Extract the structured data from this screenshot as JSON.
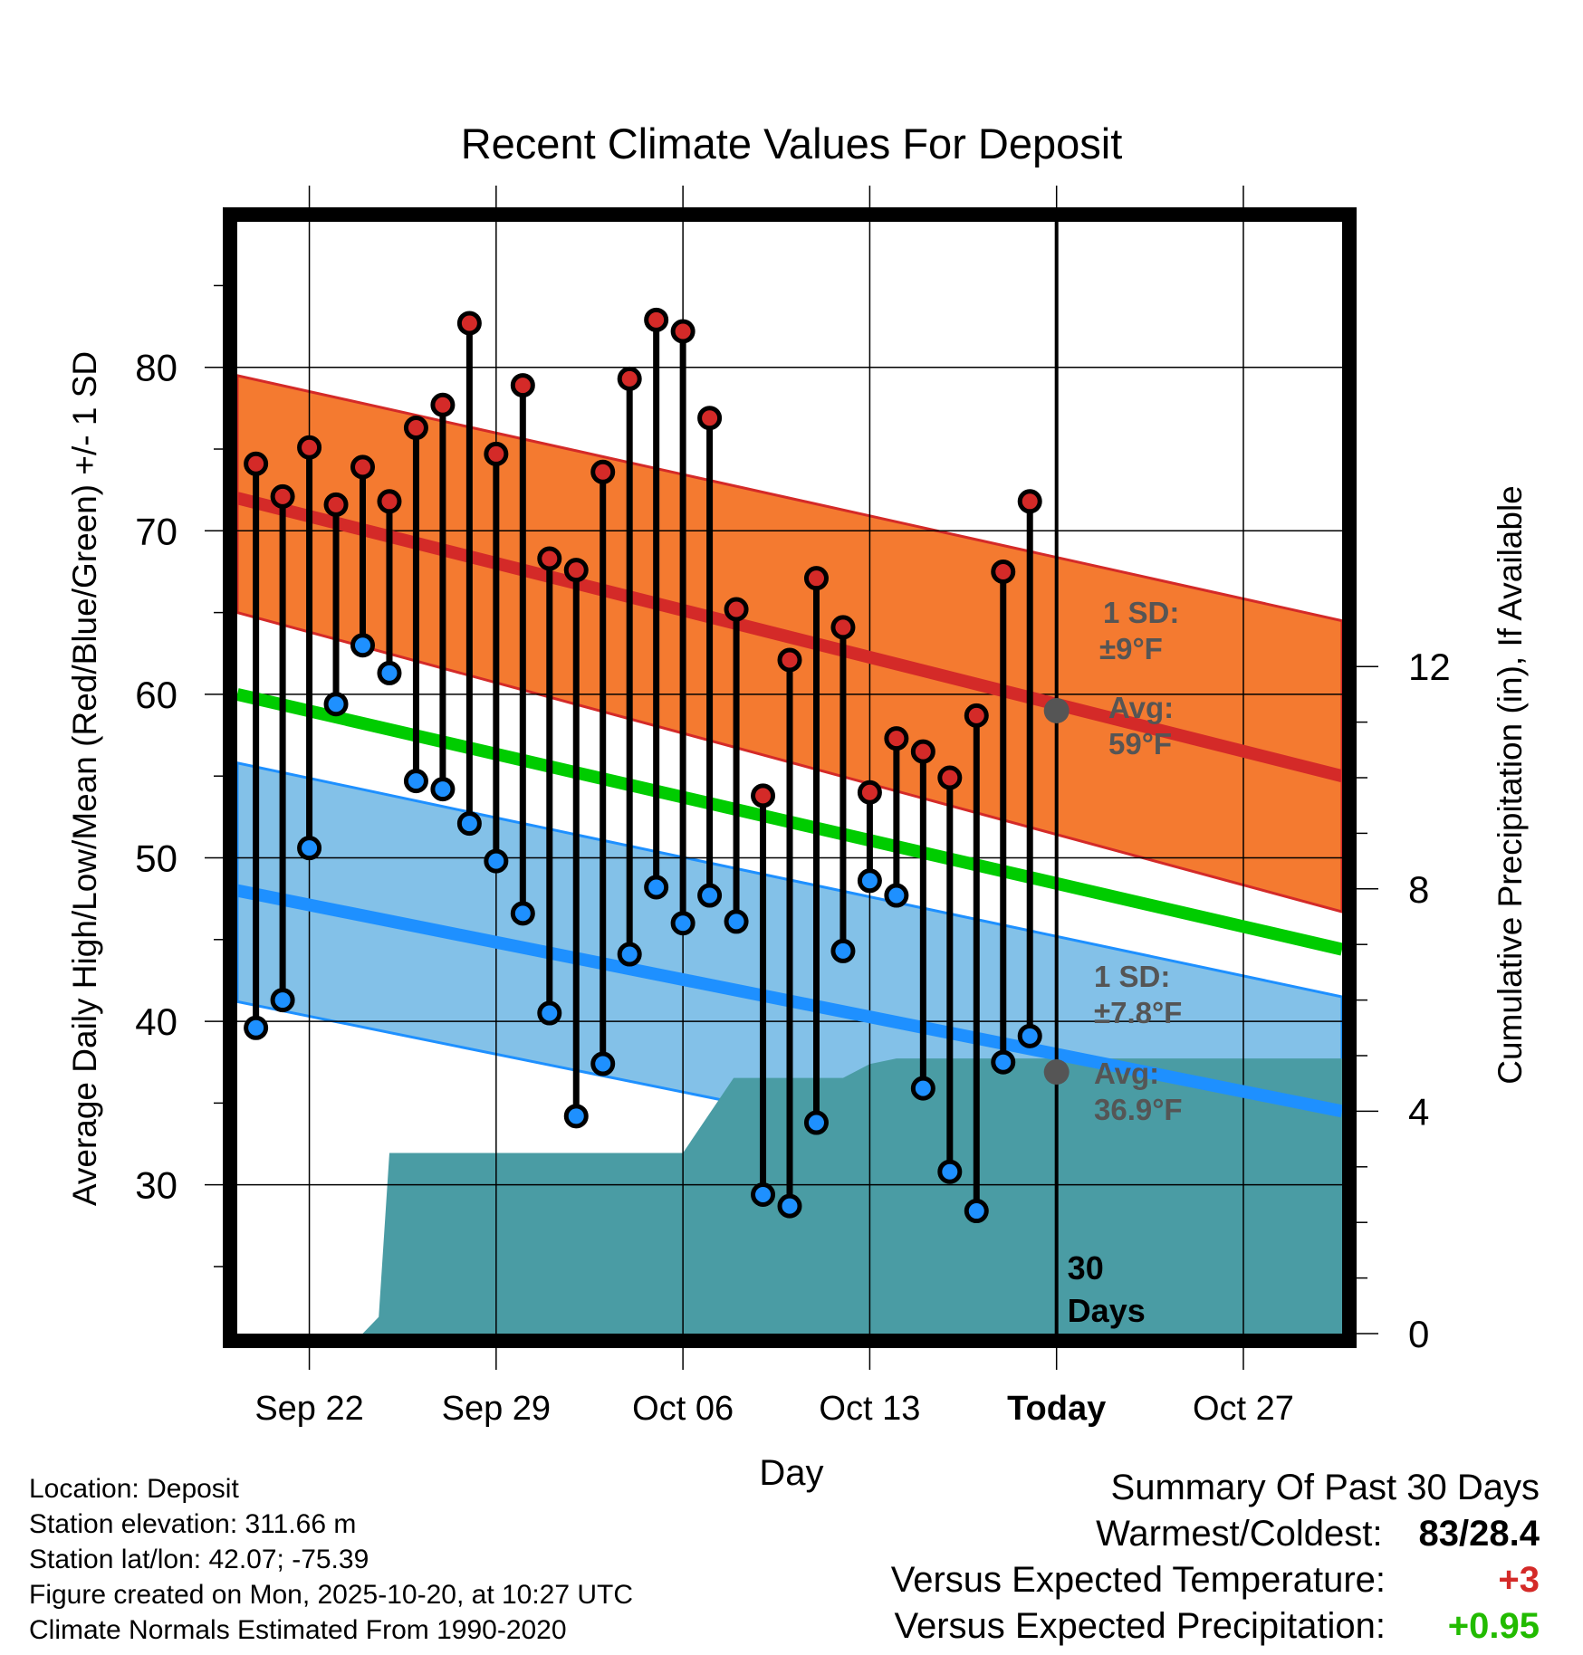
{
  "chart_data": {
    "type": "climate-range",
    "title": "Recent Climate Values For Deposit",
    "xlabel": "Day",
    "ylabel_left": "Average Daily High/Low/Mean (Red/Blue/Green) +/- 1 SD",
    "ylabel_right": "Cumulative Precipitation (in), If Available",
    "x_ticks": [
      {
        "day": 2,
        "label": "Sep 22"
      },
      {
        "day": 9,
        "label": "Sep 29"
      },
      {
        "day": 16,
        "label": "Oct 06"
      },
      {
        "day": 23,
        "label": "Oct 13"
      },
      {
        "day": 30,
        "label": "Today"
      },
      {
        "day": 37,
        "label": "Oct 27"
      }
    ],
    "xlim": [
      -0.7,
      40.7
    ],
    "ylim_left": [
      20.9,
      88.9
    ],
    "yticks_left": [
      30,
      40,
      50,
      60,
      70,
      80
    ],
    "ylim_right": [
      0,
      20
    ],
    "yticks_right": [
      0,
      4,
      8,
      12
    ],
    "today_day": 30,
    "today_label": "30 Days",
    "normals": {
      "high_mean": [
        72.0,
        55.0
      ],
      "high_sd_upper": [
        79.5,
        64.5
      ],
      "high_sd_lower": [
        65.0,
        46.7
      ],
      "low_mean": [
        48.0,
        34.5
      ],
      "low_sd_upper": [
        55.8,
        41.5
      ],
      "low_sd_lower": [
        41.2,
        27.5
      ],
      "mean": [
        60.0,
        44.4
      ]
    },
    "days": [
      0,
      1,
      2,
      3,
      4,
      5,
      6,
      7,
      8,
      9,
      10,
      11,
      12,
      13,
      14,
      15,
      16,
      17,
      18,
      19,
      20,
      21,
      22,
      23,
      24,
      25,
      26,
      27,
      28,
      29
    ],
    "highs": [
      74.1,
      72.1,
      75.1,
      71.6,
      73.9,
      71.8,
      76.3,
      77.7,
      82.7,
      74.7,
      78.9,
      68.3,
      67.6,
      73.6,
      79.3,
      82.9,
      82.2,
      76.9,
      65.2,
      53.8,
      62.1,
      67.1,
      64.1,
      54.0,
      57.3,
      56.5,
      54.9,
      58.7,
      67.5,
      71.8
    ],
    "lows": [
      39.6,
      41.3,
      50.6,
      59.4,
      63.0,
      61.3,
      54.7,
      54.2,
      52.1,
      49.8,
      46.6,
      40.5,
      34.2,
      37.4,
      44.1,
      48.2,
      46.0,
      47.7,
      46.1,
      29.4,
      28.7,
      33.8,
      44.3,
      48.6,
      47.7,
      35.9,
      30.8,
      28.4,
      37.5,
      39.1
    ],
    "precip": [
      {
        "day": -0.7,
        "value": 0
      },
      {
        "day": 4.0,
        "value": 0
      },
      {
        "day": 4.6,
        "value": 0.3
      },
      {
        "day": 5.0,
        "value": 3.25
      },
      {
        "day": 16.0,
        "value": 3.25
      },
      {
        "day": 17.9,
        "value": 4.6
      },
      {
        "day": 22.0,
        "value": 4.6
      },
      {
        "day": 23.0,
        "value": 4.85
      },
      {
        "day": 24.0,
        "value": 4.95
      },
      {
        "day": 40.7,
        "value": 4.95
      }
    ],
    "annotations": {
      "high_sd_line1": "1 SD:",
      "high_sd_line2": "±9°F",
      "high_avg_line1": "Avg:",
      "high_avg_line2": "59°F",
      "high_avg_value": 59.0,
      "low_sd_line1": "1 SD:",
      "low_sd_line2": "±7.8°F",
      "low_avg_line1": "Avg:",
      "low_avg_line2": "36.9°F",
      "low_avg_value": 36.9
    }
  },
  "info": {
    "location": "Location: Deposit",
    "elevation": "Station elevation: 311.66 m",
    "latlon": "Station lat/lon: 42.07; -75.39",
    "created": "Figure created on Mon, 2025-10-20, at 10:27 UTC",
    "normals": "Climate Normals Estimated From 1990-2020"
  },
  "summary": {
    "title": "Summary Of Past 30 Days",
    "warmest_label": "Warmest/Coldest:",
    "warmest_value": "83/28.4",
    "temp_label": "Versus Expected Temperature:",
    "temp_value": "+3",
    "precip_label": "Versus Expected Precipitation:",
    "precip_value": "+0.95"
  },
  "colors": {
    "high_band": "#f47a30",
    "high_line": "#d42a28",
    "low_band": "#83c1e8",
    "low_line": "#1e90ff",
    "mean_line": "#00cc00",
    "precip": "#4a9ca4",
    "high_dot": "#d42a28",
    "low_dot": "#1e90ff",
    "annotation": "#555555",
    "temp_value": "#d42a28",
    "precip_value": "#22bb00"
  }
}
